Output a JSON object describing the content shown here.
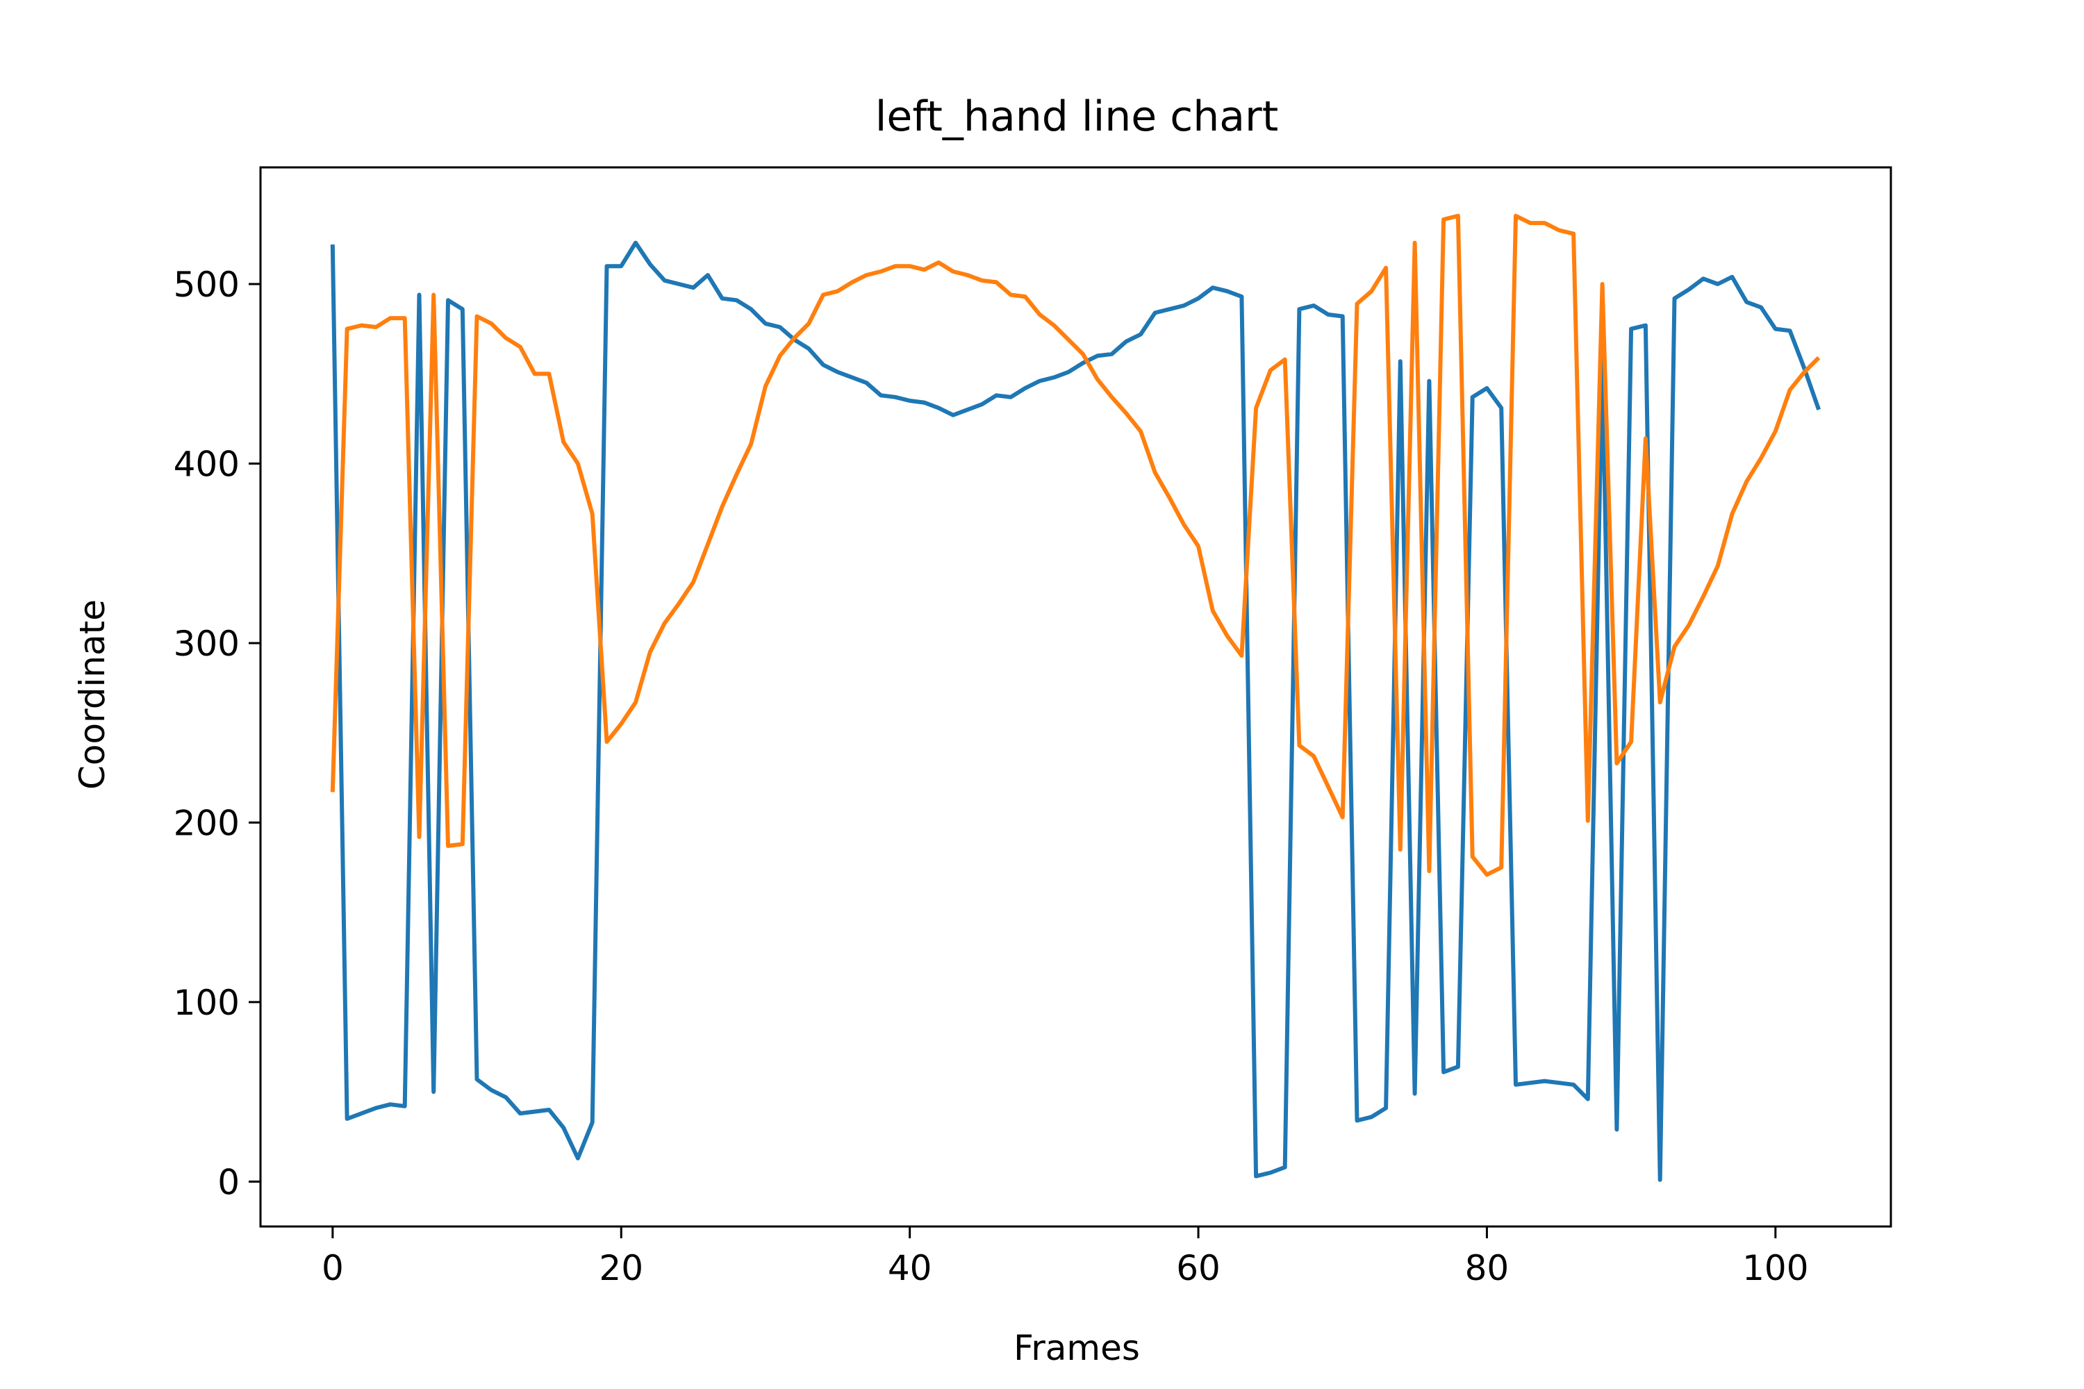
{
  "chart_data": {
    "type": "line",
    "title": "left_hand line chart",
    "xlabel": "Frames",
    "ylabel": "Coordinate",
    "xlim": [
      -5,
      108
    ],
    "ylim": [
      -25,
      565
    ],
    "xticks": [
      0,
      20,
      40,
      60,
      80,
      100
    ],
    "yticks": [
      0,
      100,
      200,
      300,
      400,
      500
    ],
    "grid": false,
    "legend": "none",
    "x": [
      0,
      1,
      2,
      3,
      4,
      5,
      6,
      7,
      8,
      9,
      10,
      11,
      12,
      13,
      14,
      15,
      16,
      17,
      18,
      19,
      20,
      21,
      22,
      23,
      24,
      25,
      26,
      27,
      28,
      29,
      30,
      31,
      32,
      33,
      34,
      35,
      36,
      37,
      38,
      39,
      40,
      41,
      42,
      43,
      44,
      45,
      46,
      47,
      48,
      49,
      50,
      51,
      52,
      53,
      54,
      55,
      56,
      57,
      58,
      59,
      60,
      61,
      62,
      63,
      64,
      65,
      66,
      67,
      68,
      69,
      70,
      71,
      72,
      73,
      74,
      75,
      76,
      77,
      78,
      79,
      80,
      81,
      82,
      83,
      84,
      85,
      86,
      87,
      88,
      89,
      90,
      91,
      92,
      93,
      94,
      95,
      96,
      97,
      98,
      99,
      100,
      101,
      102,
      103
    ],
    "series": [
      {
        "color": "#1f77b4",
        "values": [
          522,
          35,
          38,
          41,
          43,
          42,
          494,
          50,
          491,
          486,
          57,
          51,
          47,
          38,
          39,
          40,
          30,
          13,
          33,
          510,
          510,
          523,
          511,
          502,
          500,
          498,
          505,
          492,
          491,
          486,
          478,
          476,
          469,
          464,
          455,
          451,
          448,
          445,
          438,
          437,
          435,
          434,
          431,
          427,
          430,
          433,
          438,
          437,
          442,
          446,
          448,
          451,
          456,
          460,
          461,
          468,
          472,
          484,
          486,
          488,
          492,
          498,
          496,
          493,
          3,
          5,
          8,
          486,
          488,
          483,
          482,
          34,
          36,
          41,
          457,
          49,
          446,
          61,
          64,
          437,
          442,
          431,
          54,
          55,
          56,
          55,
          54,
          46,
          458,
          29,
          475,
          477,
          1,
          492,
          497,
          503,
          500,
          504,
          490,
          487,
          475,
          474,
          453,
          430
        ]
      },
      {
        "color": "#ff7f0e",
        "values": [
          217,
          475,
          477,
          476,
          481,
          481,
          192,
          494,
          187,
          188,
          482,
          478,
          470,
          465,
          450,
          450,
          412,
          400,
          372,
          245,
          255,
          267,
          295,
          311,
          322,
          334,
          355,
          376,
          394,
          411,
          443,
          460,
          470,
          478,
          494,
          496,
          501,
          505,
          507,
          510,
          510,
          508,
          512,
          507,
          505,
          502,
          501,
          494,
          493,
          483,
          477,
          469,
          461,
          447,
          437,
          428,
          418,
          395,
          381,
          366,
          354,
          318,
          304,
          293,
          431,
          452,
          458,
          243,
          237,
          220,
          203,
          489,
          496,
          509,
          185,
          523,
          173,
          536,
          538,
          181,
          171,
          175,
          538,
          534,
          534,
          530,
          528,
          201,
          500,
          233,
          245,
          414,
          267,
          298,
          310,
          326,
          343,
          372,
          390,
          403,
          418,
          441,
          451,
          459
        ]
      }
    ]
  }
}
